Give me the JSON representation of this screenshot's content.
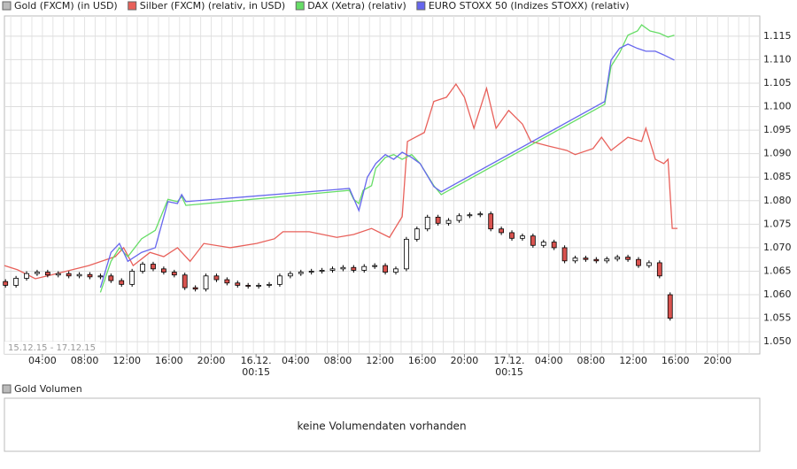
{
  "chart_data": {
    "type": "candlestick",
    "name": "Gold (FXCM) (in USD)",
    "color": "#000000",
    "up_color": "#ffffff",
    "down_color": "#d9534f",
    "date_range": "15.12.15 - 17.12.15",
    "x": [
      0.5,
      1.5,
      2.5,
      3.5,
      4.5,
      5.5,
      6.5,
      7.5,
      8.5,
      9.5,
      10.5,
      11.5,
      12.5,
      13.5,
      14.5,
      15.5,
      16.5,
      17.5,
      18.5,
      19.5,
      20.5,
      21.5,
      22.5,
      23.5,
      24.5,
      25.5,
      26.5,
      27.5,
      28.5,
      29.5,
      30.5,
      31.5,
      32.5,
      33.5,
      34.5,
      35.5,
      36.5,
      37.5,
      38.5,
      39.5,
      40.5,
      41.5,
      42.5,
      43.5,
      44.5,
      45.5,
      46.5,
      47.5,
      48.5,
      49.5,
      50.5,
      51.5,
      52.5,
      53.5,
      54.5,
      55.5,
      56.5,
      57.5,
      58.5,
      59.5,
      60.5,
      61.5,
      62.5,
      63.5
    ],
    "open": [
      1.0628,
      1.062,
      1.0635,
      1.0645,
      1.0648,
      1.0642,
      1.0645,
      1.064,
      1.0643,
      1.0638,
      1.064,
      1.063,
      1.0622,
      1.065,
      1.0665,
      1.0655,
      1.0648,
      1.0642,
      1.0615,
      1.0612,
      1.064,
      1.0632,
      1.0625,
      1.062,
      1.0618,
      1.062,
      1.0622,
      1.064,
      1.0645,
      1.0648,
      1.065,
      1.0652,
      1.0655,
      1.0658,
      1.0652,
      1.066,
      1.0662,
      1.0648,
      1.0655,
      1.0718,
      1.074,
      1.0765,
      1.0752,
      1.0758,
      1.0768,
      1.077,
      1.0772,
      1.074,
      1.0732,
      1.072,
      1.0725,
      1.0705,
      1.0712,
      1.07,
      1.0672,
      1.0678,
      1.0675,
      1.0672,
      1.0676,
      1.068,
      1.0675,
      1.0662,
      1.0668,
      1.06
    ],
    "high": [
      1.0633,
      1.064,
      1.065,
      1.0653,
      1.0653,
      1.065,
      1.065,
      1.0648,
      1.0648,
      1.0645,
      1.0645,
      1.0635,
      1.0655,
      1.067,
      1.067,
      1.066,
      1.0653,
      1.0647,
      1.062,
      1.0645,
      1.0645,
      1.0637,
      1.063,
      1.0625,
      1.0625,
      1.0627,
      1.0645,
      1.065,
      1.0653,
      1.0655,
      1.0657,
      1.066,
      1.0663,
      1.0663,
      1.0665,
      1.0667,
      1.0667,
      1.066,
      1.0723,
      1.0745,
      1.077,
      1.077,
      1.0763,
      1.0773,
      1.0775,
      1.0777,
      1.0777,
      1.0745,
      1.0737,
      1.073,
      1.073,
      1.0717,
      1.0717,
      1.0705,
      1.0683,
      1.0683,
      1.068,
      1.0681,
      1.0685,
      1.0685,
      1.068,
      1.0673,
      1.0673,
      1.0605
    ],
    "low": [
      1.0615,
      1.0615,
      1.063,
      1.064,
      1.0637,
      1.0637,
      1.0635,
      1.0635,
      1.0633,
      1.0633,
      1.0625,
      1.0617,
      1.0617,
      1.0645,
      1.065,
      1.0643,
      1.0637,
      1.061,
      1.0607,
      1.0607,
      1.0627,
      1.062,
      1.0615,
      1.0613,
      1.0613,
      1.0615,
      1.0617,
      1.0635,
      1.064,
      1.0643,
      1.0645,
      1.0647,
      1.065,
      1.0647,
      1.0647,
      1.0655,
      1.0643,
      1.0643,
      1.065,
      1.0713,
      1.0735,
      1.0747,
      1.0747,
      1.0753,
      1.0763,
      1.0765,
      1.0735,
      1.0727,
      1.0715,
      1.0715,
      1.07,
      1.07,
      1.0695,
      1.0667,
      1.0667,
      1.067,
      1.0667,
      1.0667,
      1.0671,
      1.067,
      1.0657,
      1.0657,
      1.0635,
      1.0545
    ],
    "close": [
      1.062,
      1.0635,
      1.0645,
      1.0648,
      1.0642,
      1.0645,
      1.064,
      1.0643,
      1.0638,
      1.064,
      1.063,
      1.0622,
      1.065,
      1.0665,
      1.0655,
      1.0648,
      1.0642,
      1.0615,
      1.0612,
      1.064,
      1.0632,
      1.0625,
      1.062,
      1.0618,
      1.062,
      1.0622,
      1.064,
      1.0645,
      1.0648,
      1.065,
      1.0652,
      1.0655,
      1.0658,
      1.0652,
      1.066,
      1.0662,
      1.0648,
      1.0655,
      1.0718,
      1.074,
      1.0765,
      1.0752,
      1.0758,
      1.0768,
      1.077,
      1.0772,
      1.074,
      1.0732,
      1.072,
      1.0725,
      1.0705,
      1.0712,
      1.07,
      1.0672,
      1.0678,
      1.0675,
      1.0672,
      1.0676,
      1.068,
      1.0675,
      1.0662,
      1.0668,
      1.064,
      1.055
    ],
    "series": [
      {
        "name": "Silber (FXCM) (relativ, in USD)",
        "color": "#e8605a",
        "x": [
          0.4,
          1.65,
          3.33,
          5.0,
          8.4,
          10.9,
          11.7,
          12.6,
          14.2,
          15.5,
          16.8,
          18.0,
          19.3,
          21.8,
          24.3,
          26.0,
          26.8,
          29.3,
          31.9,
          33.5,
          35.2,
          36.9,
          38.1,
          38.6,
          40.2,
          41.1,
          42.3,
          43.2,
          44.0,
          44.9,
          46.1,
          47.0,
          48.2,
          49.5,
          50.3,
          52.0,
          53.7,
          54.5,
          56.2,
          57.0,
          57.9,
          59.5,
          60.8,
          61.2,
          62.1,
          62.9,
          63.3,
          63.7,
          64.2
        ],
        "values": [
          1.0662,
          1.0653,
          1.0634,
          1.0643,
          1.0662,
          1.0681,
          1.07,
          1.0662,
          1.069,
          1.0681,
          1.07,
          1.0671,
          1.0709,
          1.07,
          1.0709,
          1.0719,
          1.0734,
          1.0734,
          1.0722,
          1.0728,
          1.0741,
          1.0722,
          1.0766,
          1.0926,
          1.0945,
          1.1011,
          1.102,
          1.1048,
          1.102,
          1.0954,
          1.1039,
          1.0954,
          1.0992,
          1.0963,
          1.0926,
          1.0916,
          1.0907,
          1.0898,
          1.0911,
          1.0935,
          1.0907,
          1.0935,
          1.0926,
          1.0954,
          1.0888,
          1.0879,
          1.0888,
          1.0741,
          1.0741
        ]
      },
      {
        "name": "DAX (Xetra) (relativ)",
        "color": "#66dd66",
        "x": [
          9.5,
          10.5,
          11.3,
          12.1,
          13.4,
          14.7,
          15.9,
          16.8,
          17.2,
          17.6,
          33.1,
          33.5,
          34.0,
          34.4,
          35.2,
          35.6,
          36.5,
          37.3,
          38.1,
          39.0,
          39.8,
          41.1,
          41.8,
          57.3,
          57.9,
          58.7,
          59.5,
          60.4,
          60.8,
          61.6,
          62.5,
          63.3,
          63.9
        ],
        "values": [
          1.0605,
          1.0671,
          1.07,
          1.0681,
          1.0719,
          1.0737,
          1.0803,
          1.0798,
          1.0809,
          1.079,
          1.0822,
          1.0803,
          1.0794,
          1.0822,
          1.0832,
          1.0869,
          1.0892,
          1.0898,
          1.0888,
          1.0898,
          1.0879,
          1.0832,
          1.0813,
          1.1005,
          1.1086,
          1.1114,
          1.1152,
          1.1161,
          1.1174,
          1.1161,
          1.1156,
          1.1148,
          1.1152
        ]
      },
      {
        "name": "EURO STOXX 50 (Indizes STOXX) (relativ)",
        "color": "#6666ee",
        "x": [
          9.5,
          10.5,
          11.3,
          12.1,
          13.4,
          14.7,
          15.9,
          16.8,
          17.2,
          17.6,
          33.1,
          34.0,
          34.8,
          35.6,
          36.5,
          37.3,
          38.1,
          39.0,
          39.8,
          41.1,
          41.8,
          57.3,
          57.9,
          58.7,
          59.5,
          60.4,
          61.2,
          62.1,
          62.9,
          63.9
        ],
        "values": [
          1.0615,
          1.069,
          1.0709,
          1.0671,
          1.069,
          1.07,
          1.0798,
          1.0794,
          1.0813,
          1.0798,
          1.0826,
          1.0779,
          1.085,
          1.0879,
          1.0898,
          1.0888,
          1.0903,
          1.0892,
          1.0879,
          1.083,
          1.0819,
          1.1011,
          1.1099,
          1.1124,
          1.1133,
          1.1124,
          1.1118,
          1.1118,
          1.111,
          1.1099
        ]
      }
    ],
    "xlim": [
      0.4,
      72
    ],
    "ylim": [
      1.0474,
      1.1193
    ],
    "xticks": [
      {
        "value": 4,
        "label": "04:00"
      },
      {
        "value": 8,
        "label": "08:00"
      },
      {
        "value": 12,
        "label": "12:00"
      },
      {
        "value": 16,
        "label": "16:00"
      },
      {
        "value": 20,
        "label": "20:00"
      },
      {
        "value": 24.25,
        "label": "16.12. 00:15"
      },
      {
        "value": 28,
        "label": "04:00"
      },
      {
        "value": 32,
        "label": "08:00"
      },
      {
        "value": 36,
        "label": "12:00"
      },
      {
        "value": 40,
        "label": "16:00"
      },
      {
        "value": 44,
        "label": "20:00"
      },
      {
        "value": 48.25,
        "label": "17.12. 00:15"
      },
      {
        "value": 52,
        "label": "04:00"
      },
      {
        "value": 56,
        "label": "08:00"
      },
      {
        "value": 60,
        "label": "12:00"
      },
      {
        "value": 64,
        "label": "16:00"
      },
      {
        "value": 68,
        "label": "20:00"
      }
    ],
    "yticks": [
      {
        "value": 1.05,
        "label": "1.050"
      },
      {
        "value": 1.055,
        "label": "1.055"
      },
      {
        "value": 1.06,
        "label": "1.060"
      },
      {
        "value": 1.065,
        "label": "1.065"
      },
      {
        "value": 1.07,
        "label": "1.070"
      },
      {
        "value": 1.075,
        "label": "1.075"
      },
      {
        "value": 1.08,
        "label": "1.080"
      },
      {
        "value": 1.085,
        "label": "1.085"
      },
      {
        "value": 1.09,
        "label": "1.090"
      },
      {
        "value": 1.095,
        "label": "1.095"
      },
      {
        "value": 1.1,
        "label": "1.100"
      },
      {
        "value": 1.105,
        "label": "1.105"
      },
      {
        "value": 1.11,
        "label": "1.110"
      },
      {
        "value": 1.115,
        "label": "1.115"
      }
    ],
    "grid": true
  },
  "volume_panel": {
    "title": "Gold Volumen",
    "message": "keine Volumendaten vorhanden"
  }
}
